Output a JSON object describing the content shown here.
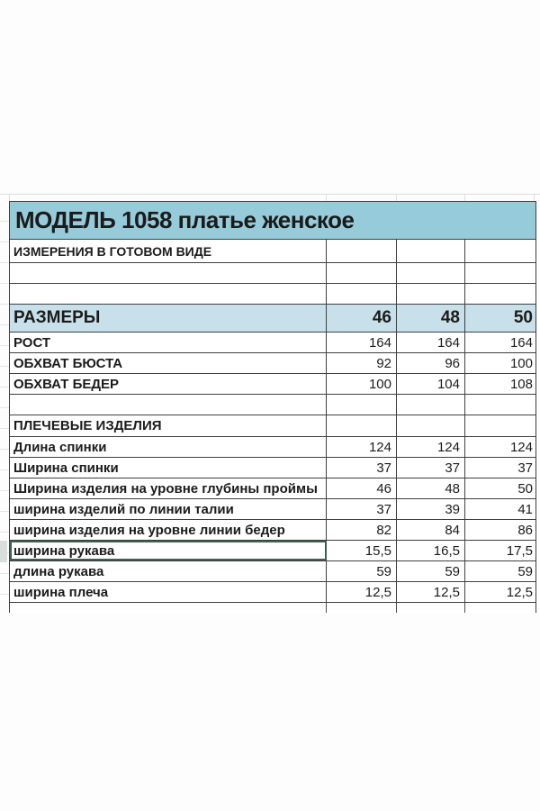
{
  "sheet": {
    "title": "МОДЕЛЬ 1058 платье женское",
    "rows": [
      {
        "kind": "subtitle",
        "label": "ИЗМЕРЕНИЯ В ГОТОВОМ ВИДЕ",
        "values": [
          "",
          "",
          ""
        ]
      },
      {
        "kind": "empty",
        "label": "",
        "values": [
          "",
          "",
          ""
        ]
      },
      {
        "kind": "empty",
        "label": "",
        "values": [
          "",
          "",
          ""
        ]
      },
      {
        "kind": "sizes",
        "label": "РАЗМЕРЫ",
        "values": [
          "46",
          "48",
          "50"
        ]
      },
      {
        "kind": "data",
        "label": "РОСТ",
        "values": [
          "164",
          "164",
          "164"
        ]
      },
      {
        "kind": "data",
        "label": "ОБХВАТ БЮСТА",
        "values": [
          "92",
          "96",
          "100"
        ]
      },
      {
        "kind": "data",
        "label": "ОБХВАТ БЕДЕР",
        "values": [
          "100",
          "104",
          "108"
        ]
      },
      {
        "kind": "empty",
        "label": "",
        "values": [
          "",
          "",
          ""
        ]
      },
      {
        "kind": "section",
        "label": "ПЛЕЧЕВЫЕ ИЗДЕЛИЯ",
        "values": [
          "",
          "",
          ""
        ]
      },
      {
        "kind": "data",
        "label": "Длина спинки",
        "values": [
          "124",
          "124",
          "124"
        ]
      },
      {
        "kind": "data",
        "label": "Ширина спинки",
        "values": [
          "37",
          "37",
          "37"
        ]
      },
      {
        "kind": "data",
        "label": "Ширина изделия на уровне глубины проймы",
        "values": [
          "46",
          "48",
          "50"
        ]
      },
      {
        "kind": "data",
        "label": "ширина изделий по линии талии",
        "values": [
          "37",
          "39",
          "41"
        ]
      },
      {
        "kind": "data",
        "label": "ширина изделия на уровне линии бедер",
        "values": [
          "82",
          "84",
          "86"
        ]
      },
      {
        "kind": "data",
        "label": "ширина рукава",
        "values": [
          "15,5",
          "16,5",
          "17,5"
        ],
        "selected": true
      },
      {
        "kind": "data",
        "label": "длина рукава",
        "values": [
          "59",
          "59",
          "59"
        ]
      },
      {
        "kind": "data",
        "label": "ширина плеча",
        "values": [
          "12,5",
          "12,5",
          "12,5"
        ]
      }
    ],
    "colors": {
      "title_bg": "#96ccd9",
      "sizes_bg": "#c7e0e9",
      "border": "#3f3f3f",
      "gridline": "#dcdfe0",
      "selection_border": "#3e5e50",
      "text": "#1b1b1b"
    }
  }
}
